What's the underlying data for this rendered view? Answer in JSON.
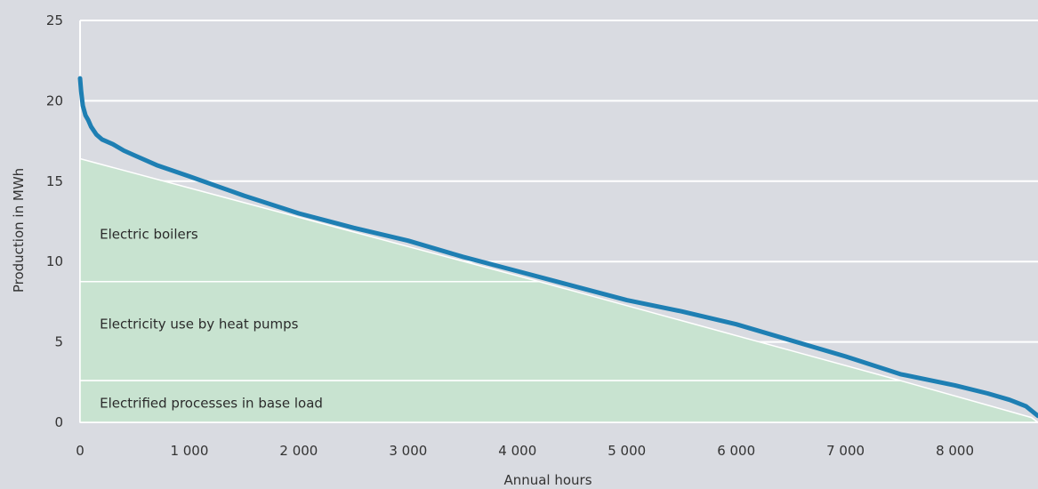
{
  "chart_data": {
    "type": "area",
    "xlabel": "Annual hours",
    "ylabel": "Production in MWh",
    "xlim": [
      0,
      8760
    ],
    "ylim": [
      0,
      25
    ],
    "x_ticks": [
      {
        "value": 0,
        "label": "0"
      },
      {
        "value": 1000,
        "label": "1 000"
      },
      {
        "value": 2000,
        "label": "2 000"
      },
      {
        "value": 3000,
        "label": "3 000"
      },
      {
        "value": 4000,
        "label": "4 000"
      },
      {
        "value": 5000,
        "label": "5 000"
      },
      {
        "value": 6000,
        "label": "6 000"
      },
      {
        "value": 7000,
        "label": "7 000"
      },
      {
        "value": 8000,
        "label": "8 000"
      }
    ],
    "y_ticks": [
      {
        "value": 0,
        "label": "0"
      },
      {
        "value": 5,
        "label": "5"
      },
      {
        "value": 10,
        "label": "10"
      },
      {
        "value": 15,
        "label": "15"
      },
      {
        "value": 20,
        "label": "20"
      },
      {
        "value": 25,
        "label": "25"
      }
    ],
    "grid": true,
    "areas": [
      {
        "label": "Electrified processes in base load",
        "label_anchor": [
          180,
          1.2
        ],
        "polygon": [
          [
            0,
            0
          ],
          [
            0,
            2.6
          ],
          [
            7500,
            2.6
          ],
          [
            8700,
            0.3
          ],
          [
            8760,
            0
          ]
        ]
      },
      {
        "label": "Electricity use by heat pumps",
        "label_anchor": [
          180,
          6.1
        ],
        "polygon": [
          [
            0,
            2.6
          ],
          [
            0,
            8.75
          ],
          [
            4200,
            8.75
          ],
          [
            7500,
            2.6
          ]
        ]
      },
      {
        "label": "Electric boilers",
        "label_anchor": [
          180,
          11.7
        ],
        "polygon": [
          [
            0,
            8.75
          ],
          [
            0,
            16.4
          ],
          [
            4200,
            8.75
          ]
        ]
      }
    ],
    "area_color": "#c8e3d0",
    "area_edge_color": "#ffffff",
    "series": [
      {
        "x": [
          0,
          10,
          25,
          50,
          75,
          100,
          150,
          200,
          300,
          400,
          500,
          700,
          1000,
          1500,
          2000,
          2500,
          3000,
          3500,
          4000,
          4500,
          5000,
          5500,
          6000,
          6500,
          7000,
          7500,
          8000,
          8300,
          8500,
          8650,
          8760
        ],
        "y": [
          21.4,
          20.6,
          19.7,
          19.1,
          18.8,
          18.4,
          17.9,
          17.6,
          17.3,
          16.9,
          16.6,
          16.0,
          15.3,
          14.1,
          13.0,
          12.1,
          11.3,
          10.3,
          9.4,
          8.5,
          7.6,
          6.9,
          6.1,
          5.1,
          4.1,
          3.0,
          2.3,
          1.8,
          1.4,
          1.0,
          0.4
        ],
        "color": "#1e7fb3"
      }
    ]
  }
}
